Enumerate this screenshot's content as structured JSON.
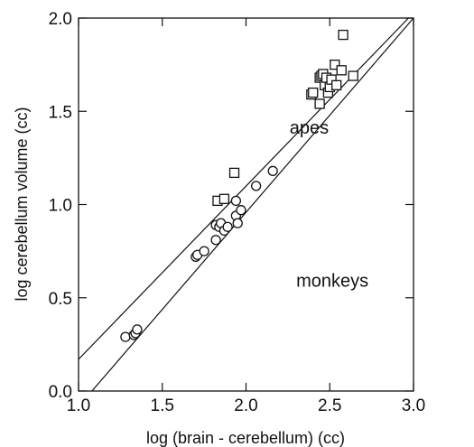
{
  "chart_data": {
    "type": "scatter",
    "xlabel": "log (brain - cerebellum) (cc)",
    "ylabel": "log cerebellum volume (cc)",
    "xlim": [
      1.0,
      3.0
    ],
    "ylim": [
      0.0,
      2.0
    ],
    "xticks": [
      "1.0",
      "1.5",
      "2.0",
      "2.5",
      "3.0"
    ],
    "yticks": [
      "0.0",
      "0.5",
      "1.0",
      "1.5",
      "2.0"
    ],
    "annotations": [
      {
        "text": "apes",
        "x": 2.26,
        "y": 1.38
      },
      {
        "text": "monkeys",
        "x": 2.3,
        "y": 0.56
      }
    ],
    "series": [
      {
        "marker": "square",
        "values": [
          [
            1.83,
            1.02
          ],
          [
            1.87,
            1.03
          ],
          [
            1.93,
            1.17
          ],
          [
            2.39,
            1.59
          ],
          [
            2.4,
            1.6
          ],
          [
            2.44,
            1.68
          ],
          [
            2.44,
            1.54
          ],
          [
            2.45,
            1.69
          ],
          [
            2.46,
            1.7
          ],
          [
            2.47,
            1.64
          ],
          [
            2.48,
            1.68
          ],
          [
            2.49,
            1.6
          ],
          [
            2.5,
            1.63
          ],
          [
            2.51,
            1.67
          ],
          [
            2.53,
            1.75
          ],
          [
            2.54,
            1.64
          ],
          [
            2.57,
            1.72
          ],
          [
            2.58,
            1.91
          ],
          [
            2.64,
            1.69
          ]
        ]
      },
      {
        "marker": "circle",
        "values": [
          [
            1.28,
            0.29
          ],
          [
            1.33,
            0.3
          ],
          [
            1.34,
            0.31
          ],
          [
            1.35,
            0.33
          ],
          [
            1.7,
            0.72
          ],
          [
            1.71,
            0.73
          ],
          [
            1.75,
            0.75
          ],
          [
            1.82,
            0.81
          ],
          [
            1.82,
            0.89
          ],
          [
            1.84,
            0.88
          ],
          [
            1.85,
            0.9
          ],
          [
            1.87,
            0.86
          ],
          [
            1.89,
            0.88
          ],
          [
            1.94,
            0.94
          ],
          [
            1.94,
            1.02
          ],
          [
            1.95,
            0.9
          ],
          [
            1.97,
            0.97
          ],
          [
            2.06,
            1.1
          ],
          [
            2.16,
            1.18
          ]
        ]
      }
    ],
    "lines": [
      {
        "x": [
          1.0,
          2.97
        ],
        "y": [
          0.17,
          2.0
        ]
      },
      {
        "x": [
          1.08,
          3.0
        ],
        "y": [
          0.0,
          2.0
        ]
      }
    ],
    "grid": false
  }
}
